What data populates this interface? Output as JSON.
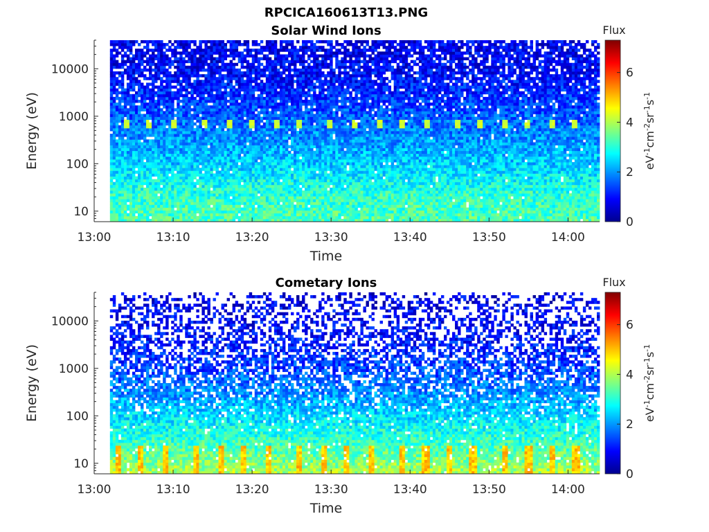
{
  "figure_title": "RPCICA160613T13.PNG",
  "chart_data": [
    {
      "type": "heatmap",
      "title": "Solar Wind Ions",
      "xlabel": "Time",
      "ylabel": "Energy (eV)",
      "x_ticks": [
        "13:00",
        "13:10",
        "13:20",
        "13:30",
        "13:40",
        "13:50",
        "14:00"
      ],
      "xlim": [
        "13:00",
        "14:04"
      ],
      "data_start": "13:02",
      "y_scale": "log",
      "y_ticks": [
        10,
        100,
        1000,
        10000
      ],
      "ylim": [
        6,
        40000
      ],
      "colorbar": {
        "title": "Flux",
        "label": "eV-1cm-2sr-1s-1",
        "ticks": [
          0,
          2,
          4,
          6
        ],
        "range": [
          0,
          7.3
        ],
        "colormap": "jet"
      },
      "features": {
        "background_flux_by_energy_eV": [
          [
            6,
            3.3
          ],
          [
            20,
            3.1
          ],
          [
            40,
            2.8
          ],
          [
            100,
            2.4
          ],
          [
            300,
            2.0
          ],
          [
            1000,
            1.6
          ],
          [
            3000,
            1.2
          ],
          [
            10000,
            0.9
          ],
          [
            40000,
            0.8
          ]
        ],
        "periodic_peaks": {
          "energy_eV": 650,
          "flux": 4.2,
          "times": [
            "13:04",
            "13:07",
            "13:10",
            "13:14",
            "13:17",
            "13:20",
            "13:23",
            "13:26",
            "13:30",
            "13:33",
            "13:36",
            "13:39",
            "13:42",
            "13:46",
            "13:49",
            "13:52",
            "13:55",
            "13:58",
            "14:01"
          ]
        }
      }
    },
    {
      "type": "heatmap",
      "title": "Cometary Ions",
      "xlabel": "Time",
      "ylabel": "Energy (eV)",
      "x_ticks": [
        "13:00",
        "13:10",
        "13:20",
        "13:30",
        "13:40",
        "13:50",
        "14:00"
      ],
      "xlim": [
        "13:00",
        "14:04"
      ],
      "data_start": "13:02",
      "y_scale": "log",
      "y_ticks": [
        10,
        100,
        1000,
        10000
      ],
      "ylim": [
        6,
        40000
      ],
      "colorbar": {
        "title": "Flux",
        "label": "eV-1cm-2sr-1s-1",
        "ticks": [
          0,
          2,
          4,
          6
        ],
        "range": [
          0,
          7.3
        ],
        "colormap": "jet"
      },
      "features": {
        "background_flux_by_energy_eV": [
          [
            6,
            4.0
          ],
          [
            12,
            3.6
          ],
          [
            25,
            3.2
          ],
          [
            60,
            2.8
          ],
          [
            150,
            2.3
          ],
          [
            400,
            1.8
          ],
          [
            1000,
            1.4
          ],
          [
            3000,
            1.1
          ],
          [
            10000,
            0.9
          ],
          [
            40000,
            0.7
          ]
        ],
        "low_energy_bursts": {
          "energy_range_eV": [
            6,
            25
          ],
          "flux": 4.8,
          "times": [
            "13:03",
            "13:06",
            "13:09",
            "13:13",
            "13:16",
            "13:19",
            "13:22",
            "13:26",
            "13:29",
            "13:32",
            "13:35",
            "13:39",
            "13:42",
            "13:45",
            "13:48",
            "13:52",
            "13:55",
            "13:58",
            "14:01"
          ]
        }
      }
    }
  ]
}
